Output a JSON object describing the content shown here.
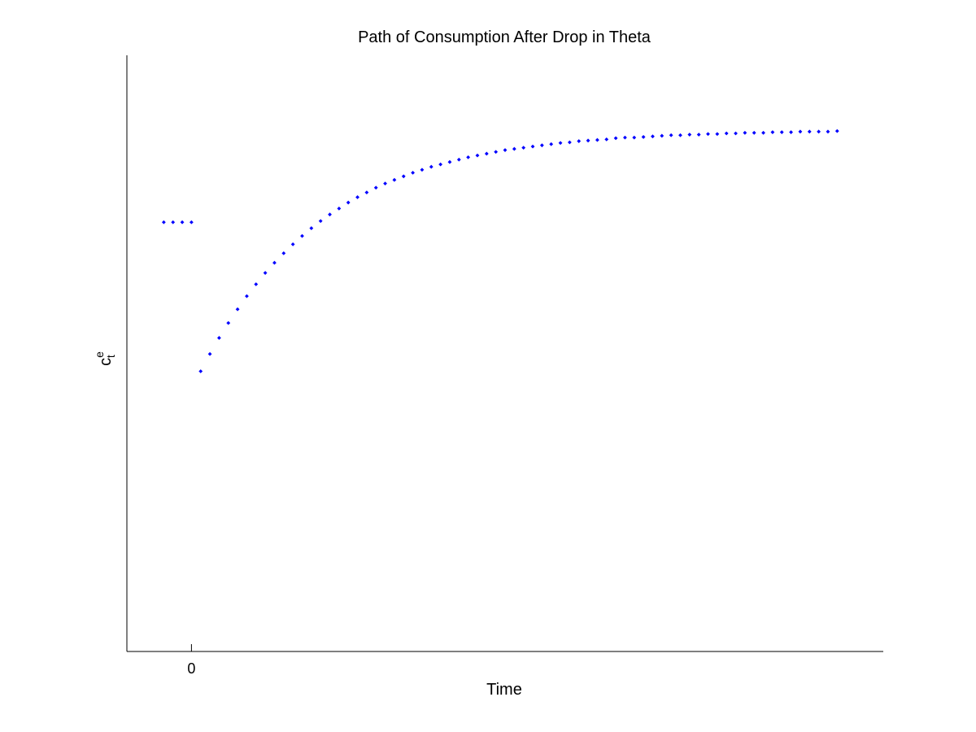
{
  "chart_data": {
    "type": "scatter",
    "title": "Path of Consumption After Drop in Theta",
    "xlabel": "Time",
    "ylabel": {
      "base": "c",
      "superscript": "e",
      "subscript": "t"
    },
    "xticks": [
      0
    ],
    "xlim": [
      -7,
      75
    ],
    "ylim": [
      0,
      1
    ],
    "grid": false,
    "marker_color": "#0000ff",
    "series": [
      {
        "points": [
          {
            "x": -3,
            "y": 0.72
          },
          {
            "x": -2,
            "y": 0.72
          },
          {
            "x": -1,
            "y": 0.72
          },
          {
            "x": 0,
            "y": 0.72
          },
          {
            "x": 1,
            "y": 0.47
          },
          {
            "x": 2,
            "y": 0.499
          },
          {
            "x": 3,
            "y": 0.526
          },
          {
            "x": 4,
            "y": 0.551
          },
          {
            "x": 5,
            "y": 0.574
          },
          {
            "x": 6,
            "y": 0.596
          },
          {
            "x": 7,
            "y": 0.616
          },
          {
            "x": 8,
            "y": 0.635
          },
          {
            "x": 9,
            "y": 0.652
          },
          {
            "x": 10,
            "y": 0.668
          },
          {
            "x": 11,
            "y": 0.683
          },
          {
            "x": 12,
            "y": 0.697
          },
          {
            "x": 13,
            "y": 0.71
          },
          {
            "x": 14,
            "y": 0.722
          },
          {
            "x": 15,
            "y": 0.733
          },
          {
            "x": 16,
            "y": 0.743
          },
          {
            "x": 17,
            "y": 0.753
          },
          {
            "x": 18,
            "y": 0.762
          },
          {
            "x": 19,
            "y": 0.77
          },
          {
            "x": 20,
            "y": 0.778
          },
          {
            "x": 21,
            "y": 0.785
          },
          {
            "x": 22,
            "y": 0.791
          },
          {
            "x": 23,
            "y": 0.797
          },
          {
            "x": 24,
            "y": 0.803
          },
          {
            "x": 25,
            "y": 0.808
          },
          {
            "x": 26,
            "y": 0.813
          },
          {
            "x": 27,
            "y": 0.817
          },
          {
            "x": 28,
            "y": 0.821
          },
          {
            "x": 29,
            "y": 0.825
          },
          {
            "x": 30,
            "y": 0.829
          },
          {
            "x": 31,
            "y": 0.832
          },
          {
            "x": 32,
            "y": 0.835
          },
          {
            "x": 33,
            "y": 0.838
          },
          {
            "x": 34,
            "y": 0.841
          },
          {
            "x": 35,
            "y": 0.843
          },
          {
            "x": 36,
            "y": 0.845
          },
          {
            "x": 37,
            "y": 0.847
          },
          {
            "x": 38,
            "y": 0.849
          },
          {
            "x": 39,
            "y": 0.851
          },
          {
            "x": 40,
            "y": 0.853
          },
          {
            "x": 41,
            "y": 0.854
          },
          {
            "x": 42,
            "y": 0.856
          },
          {
            "x": 43,
            "y": 0.857
          },
          {
            "x": 44,
            "y": 0.858
          },
          {
            "x": 45,
            "y": 0.859
          },
          {
            "x": 46,
            "y": 0.861
          },
          {
            "x": 47,
            "y": 0.862
          },
          {
            "x": 48,
            "y": 0.862
          },
          {
            "x": 49,
            "y": 0.863
          },
          {
            "x": 50,
            "y": 0.864
          },
          {
            "x": 51,
            "y": 0.865
          },
          {
            "x": 52,
            "y": 0.866
          },
          {
            "x": 53,
            "y": 0.866
          },
          {
            "x": 54,
            "y": 0.867
          },
          {
            "x": 55,
            "y": 0.867
          },
          {
            "x": 56,
            "y": 0.868
          },
          {
            "x": 57,
            "y": 0.868
          },
          {
            "x": 58,
            "y": 0.869
          },
          {
            "x": 59,
            "y": 0.869
          },
          {
            "x": 60,
            "y": 0.87
          },
          {
            "x": 61,
            "y": 0.87
          },
          {
            "x": 62,
            "y": 0.87
          },
          {
            "x": 63,
            "y": 0.871
          },
          {
            "x": 64,
            "y": 0.871
          },
          {
            "x": 65,
            "y": 0.871
          },
          {
            "x": 66,
            "y": 0.872
          },
          {
            "x": 67,
            "y": 0.872
          },
          {
            "x": 68,
            "y": 0.872
          },
          {
            "x": 69,
            "y": 0.872
          },
          {
            "x": 70,
            "y": 0.873
          }
        ]
      }
    ]
  }
}
